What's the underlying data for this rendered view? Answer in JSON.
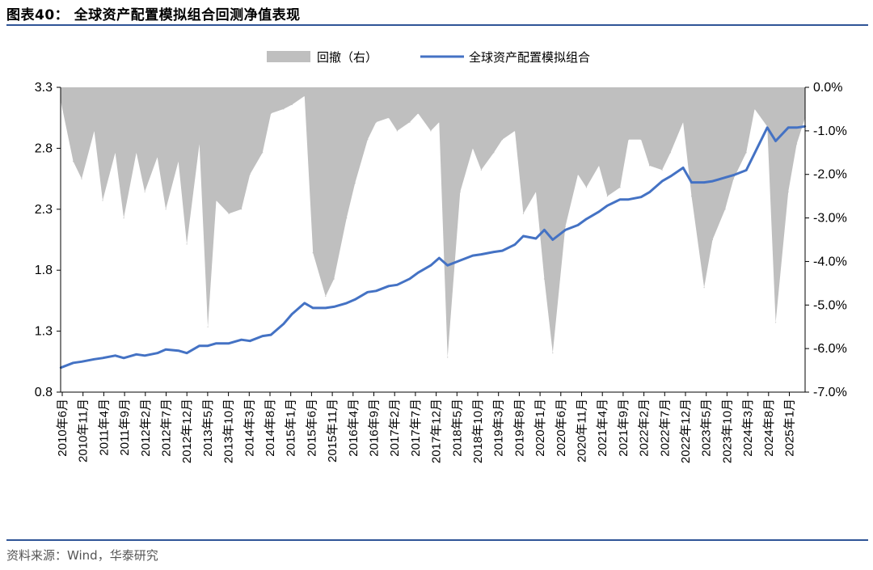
{
  "header": {
    "title": "图表40： 全球资产配置模拟组合回测净值表现"
  },
  "footer": {
    "source": "资料来源：Wind，华泰研究"
  },
  "colors": {
    "line": "#4472C4",
    "drawdown": "#BFBFBF",
    "rule": "#2F5597",
    "axis": "#000000"
  },
  "chart_data": {
    "type": "line",
    "legend": [
      "回撤（右）",
      "全球资产配置模拟组合"
    ],
    "legend_position": "top-center",
    "grid": false,
    "y_left": {
      "min": 0.8,
      "max": 3.3,
      "ticks": [
        "3.3",
        "2.8",
        "2.3",
        "1.8",
        "1.3",
        "0.8"
      ]
    },
    "y_right": {
      "min": -7.0,
      "max": 0.0,
      "ticks": [
        "0.0%",
        "-1.0%",
        "-2.0%",
        "-3.0%",
        "-4.0%",
        "-5.0%",
        "-6.0%",
        "-7.0%"
      ]
    },
    "x_ticks": [
      "2010年6月",
      "2010年11月",
      "2011年4月",
      "2011年9月",
      "2012年2月",
      "2012年7月",
      "2012年12月",
      "2013年5月",
      "2013年10月",
      "2014年3月",
      "2014年8月",
      "2015年1月",
      "2015年6月",
      "2015年11月",
      "2016年4月",
      "2016年9月",
      "2017年2月",
      "2017年7月",
      "2017年12月",
      "2018年5月",
      "2018年10月",
      "2019年3月",
      "2019年8月",
      "2020年1月",
      "2020年6月",
      "2020年11月",
      "2021年4月",
      "2021年9月",
      "2022年2月",
      "2022年7月",
      "2022年12月",
      "2023年5月",
      "2023年10月",
      "2024年3月",
      "2024年8月",
      "2025年1月"
    ],
    "series": [
      {
        "name": "全球资产配置模拟组合",
        "type": "line",
        "x": [
          "2010-06",
          "2010-09",
          "2010-11",
          "2011-02",
          "2011-04",
          "2011-07",
          "2011-09",
          "2011-12",
          "2012-02",
          "2012-05",
          "2012-07",
          "2012-10",
          "2012-12",
          "2013-03",
          "2013-05",
          "2013-07",
          "2013-10",
          "2014-01",
          "2014-03",
          "2014-06",
          "2014-08",
          "2014-11",
          "2015-01",
          "2015-04",
          "2015-06",
          "2015-09",
          "2015-11",
          "2016-02",
          "2016-04",
          "2016-07",
          "2016-09",
          "2016-12",
          "2017-02",
          "2017-05",
          "2017-07",
          "2017-10",
          "2017-12",
          "2018-02",
          "2018-05",
          "2018-08",
          "2018-10",
          "2019-01",
          "2019-03",
          "2019-06",
          "2019-08",
          "2019-11",
          "2020-01",
          "2020-03",
          "2020-06",
          "2020-09",
          "2020-11",
          "2021-02",
          "2021-04",
          "2021-07",
          "2021-09",
          "2021-12",
          "2022-02",
          "2022-05",
          "2022-07",
          "2022-10",
          "2022-12",
          "2023-03",
          "2023-05",
          "2023-08",
          "2023-10",
          "2024-01",
          "2024-03",
          "2024-06",
          "2024-08",
          "2024-11",
          "2025-01",
          "2025-03"
        ],
        "values": [
          1.0,
          1.04,
          1.05,
          1.07,
          1.08,
          1.1,
          1.08,
          1.11,
          1.1,
          1.12,
          1.15,
          1.14,
          1.12,
          1.18,
          1.18,
          1.2,
          1.2,
          1.23,
          1.22,
          1.26,
          1.27,
          1.36,
          1.44,
          1.53,
          1.49,
          1.49,
          1.5,
          1.53,
          1.56,
          1.62,
          1.63,
          1.67,
          1.68,
          1.73,
          1.78,
          1.84,
          1.9,
          1.84,
          1.88,
          1.92,
          1.93,
          1.95,
          1.96,
          2.01,
          2.08,
          2.06,
          2.13,
          2.05,
          2.13,
          2.17,
          2.22,
          2.28,
          2.33,
          2.38,
          2.38,
          2.4,
          2.44,
          2.53,
          2.57,
          2.64,
          2.52,
          2.52,
          2.53,
          2.56,
          2.58,
          2.62,
          2.76,
          2.97,
          2.86,
          2.97,
          2.97,
          2.98
        ]
      },
      {
        "name": "回撤（右）",
        "type": "area",
        "x": [
          "2010-06",
          "2010-09",
          "2010-11",
          "2011-02",
          "2011-04",
          "2011-07",
          "2011-09",
          "2011-12",
          "2012-02",
          "2012-05",
          "2012-07",
          "2012-10",
          "2012-12",
          "2013-03",
          "2013-05",
          "2013-07",
          "2013-10",
          "2014-01",
          "2014-03",
          "2014-06",
          "2014-08",
          "2014-11",
          "2015-01",
          "2015-04",
          "2015-06",
          "2015-09",
          "2015-11",
          "2016-02",
          "2016-04",
          "2016-07",
          "2016-09",
          "2016-12",
          "2017-02",
          "2017-05",
          "2017-07",
          "2017-10",
          "2017-12",
          "2018-02",
          "2018-05",
          "2018-08",
          "2018-10",
          "2019-01",
          "2019-03",
          "2019-06",
          "2019-08",
          "2019-11",
          "2020-01",
          "2020-03",
          "2020-06",
          "2020-09",
          "2020-11",
          "2021-02",
          "2021-04",
          "2021-07",
          "2021-09",
          "2021-12",
          "2022-02",
          "2022-05",
          "2022-07",
          "2022-10",
          "2022-12",
          "2023-03",
          "2023-05",
          "2023-08",
          "2023-10",
          "2024-01",
          "2024-03",
          "2024-06",
          "2024-08",
          "2024-11",
          "2025-01",
          "2025-03"
        ],
        "values": [
          -0.3,
          -1.7,
          -2.1,
          -1.0,
          -2.6,
          -1.5,
          -3.0,
          -1.5,
          -2.4,
          -1.6,
          -2.8,
          -1.7,
          -3.6,
          -1.3,
          -5.5,
          -2.6,
          -2.9,
          -2.8,
          -2.0,
          -1.5,
          -0.6,
          -0.5,
          -0.4,
          -0.2,
          -3.8,
          -4.8,
          -4.4,
          -3.0,
          -2.2,
          -1.2,
          -0.8,
          -0.7,
          -1.0,
          -0.8,
          -0.6,
          -1.0,
          -0.8,
          -6.2,
          -2.4,
          -1.4,
          -1.9,
          -1.5,
          -1.2,
          -1.0,
          -2.9,
          -2.4,
          -4.4,
          -6.1,
          -3.2,
          -2.0,
          -2.3,
          -1.8,
          -2.5,
          -2.3,
          -1.2,
          -1.2,
          -1.8,
          -1.9,
          -1.5,
          -0.8,
          -2.5,
          -4.6,
          -3.5,
          -2.8,
          -2.1,
          -1.5,
          -0.5,
          -0.9,
          -5.4,
          -2.4,
          -1.3,
          -0.7
        ]
      }
    ]
  }
}
